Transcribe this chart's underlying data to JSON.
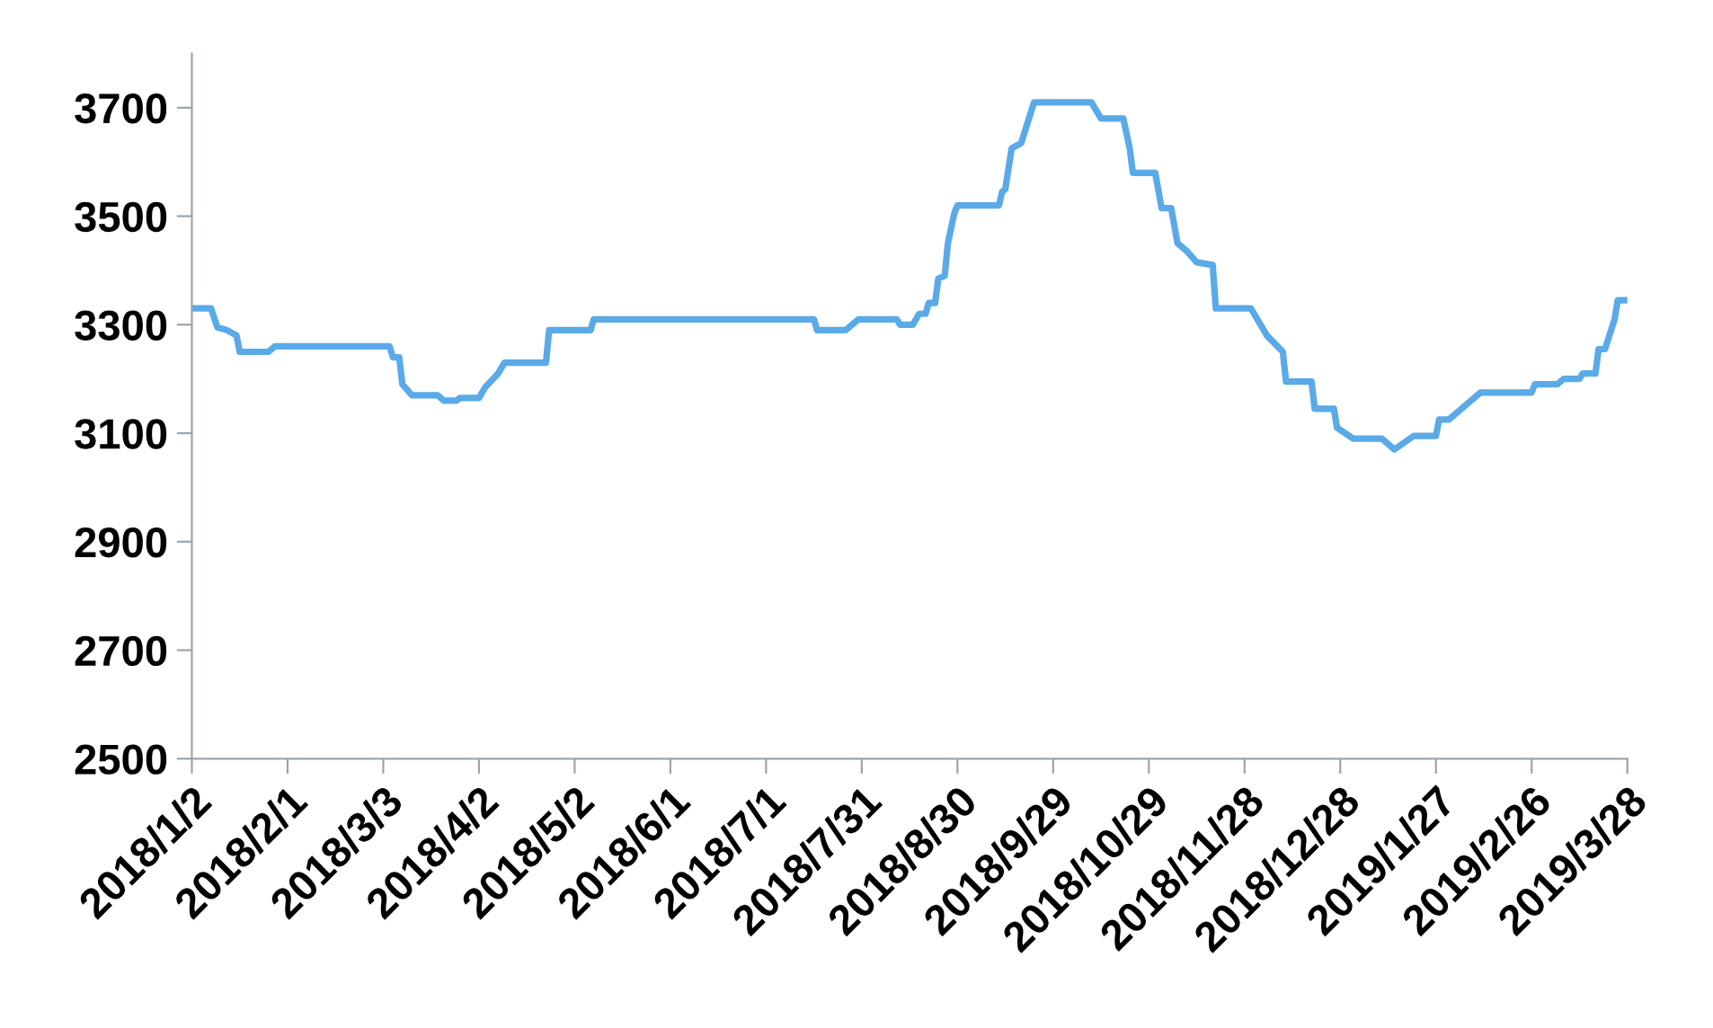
{
  "chart_data": {
    "type": "line",
    "color": "#5aaae8",
    "line_style": "solid",
    "marker": "none",
    "grid": false,
    "legend": false,
    "x": [
      "2018-01-02",
      "2018-01-08",
      "2018-01-10",
      "2018-01-13",
      "2018-01-16",
      "2018-01-17",
      "2018-01-26",
      "2018-01-28",
      "2018-03-05",
      "2018-03-06",
      "2018-03-08",
      "2018-03-09",
      "2018-03-12",
      "2018-03-20",
      "2018-03-22",
      "2018-03-26",
      "2018-03-27",
      "2018-04-02",
      "2018-04-04",
      "2018-04-08",
      "2018-04-10",
      "2018-04-23",
      "2018-04-24",
      "2018-05-07",
      "2018-05-08",
      "2018-07-16",
      "2018-07-17",
      "2018-07-26",
      "2018-07-30",
      "2018-08-11",
      "2018-08-12",
      "2018-08-16",
      "2018-08-18",
      "2018-08-20",
      "2018-08-21",
      "2018-08-23",
      "2018-08-24",
      "2018-08-26",
      "2018-08-27",
      "2018-08-29",
      "2018-08-30",
      "2018-09-12",
      "2018-09-13",
      "2018-09-14",
      "2018-09-16",
      "2018-09-19",
      "2018-09-23",
      "2018-10-11",
      "2018-10-14",
      "2018-10-21",
      "2018-10-23",
      "2018-10-24",
      "2018-10-31",
      "2018-11-02",
      "2018-11-05",
      "2018-11-07",
      "2018-11-10",
      "2018-11-13",
      "2018-11-18",
      "2018-11-19",
      "2018-11-30",
      "2018-12-02",
      "2018-12-05",
      "2018-12-10",
      "2018-12-11",
      "2018-12-19",
      "2018-12-20",
      "2018-12-26",
      "2018-12-27",
      "2019-01-01",
      "2019-01-10",
      "2019-01-14",
      "2019-01-20",
      "2019-01-27",
      "2019-01-28",
      "2019-01-31",
      "2019-02-10",
      "2019-02-26",
      "2019-02-27",
      "2019-03-06",
      "2019-03-08",
      "2019-03-13",
      "2019-03-14",
      "2019-03-18",
      "2019-03-19",
      "2019-03-21",
      "2019-03-24",
      "2019-03-25",
      "2019-03-28"
    ],
    "values": [
      3330,
      3330,
      3295,
      3290,
      3280,
      3250,
      3250,
      3260,
      3260,
      3240,
      3240,
      3190,
      3170,
      3170,
      3160,
      3160,
      3165,
      3165,
      3185,
      3210,
      3230,
      3230,
      3290,
      3290,
      3310,
      3310,
      3290,
      3290,
      3310,
      3310,
      3300,
      3300,
      3320,
      3320,
      3340,
      3340,
      3385,
      3390,
      3450,
      3505,
      3520,
      3520,
      3545,
      3550,
      3625,
      3635,
      3710,
      3710,
      3680,
      3680,
      3625,
      3580,
      3580,
      3515,
      3515,
      3450,
      3435,
      3415,
      3410,
      3330,
      3330,
      3310,
      3280,
      3250,
      3195,
      3195,
      3145,
      3145,
      3110,
      3090,
      3090,
      3070,
      3095,
      3095,
      3125,
      3125,
      3175,
      3175,
      3190,
      3190,
      3200,
      3200,
      3210,
      3210,
      3255,
      3255,
      3310,
      3345,
      3345
    ],
    "xlim": [
      "2018-01-02",
      "2019-03-28"
    ],
    "xticks": [
      {
        "value": "2018-01-02",
        "label": "2018/1/2"
      },
      {
        "value": "2018-02-01",
        "label": "2018/2/1"
      },
      {
        "value": "2018-03-03",
        "label": "2018/3/3"
      },
      {
        "value": "2018-04-02",
        "label": "2018/4/2"
      },
      {
        "value": "2018-05-02",
        "label": "2018/5/2"
      },
      {
        "value": "2018-06-01",
        "label": "2018/6/1"
      },
      {
        "value": "2018-07-01",
        "label": "2018/7/1"
      },
      {
        "value": "2018-07-31",
        "label": "2018/7/31"
      },
      {
        "value": "2018-08-30",
        "label": "2018/8/30"
      },
      {
        "value": "2018-09-29",
        "label": "2018/9/29"
      },
      {
        "value": "2018-10-29",
        "label": "2018/10/29"
      },
      {
        "value": "2018-11-28",
        "label": "2018/11/28"
      },
      {
        "value": "2018-12-28",
        "label": "2018/12/28"
      },
      {
        "value": "2019-01-27",
        "label": "2019/1/27"
      },
      {
        "value": "2019-02-26",
        "label": "2019/2/26"
      },
      {
        "value": "2019-03-28",
        "label": "2019/3/28"
      }
    ],
    "ylim": [
      2500,
      3800
    ],
    "yticks": [
      2500,
      2700,
      2900,
      3100,
      3300,
      3500,
      3700
    ]
  }
}
